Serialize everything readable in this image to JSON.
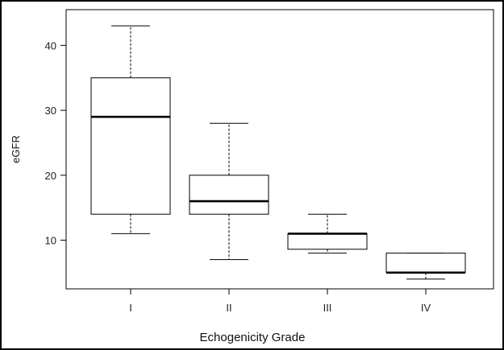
{
  "chart_data": {
    "type": "box",
    "title": "",
    "xlabel": "Echogenicity Grade",
    "ylabel": "eGFR",
    "categories": [
      "I",
      "II",
      "III",
      "IV"
    ],
    "ylim": [
      2.5,
      45.5
    ],
    "yticks": [
      10,
      20,
      30,
      40
    ],
    "grid": false,
    "boxes": [
      {
        "category": "I",
        "min": 11,
        "q1": 14,
        "median": 29,
        "q3": 35,
        "max": 43
      },
      {
        "category": "II",
        "min": 7,
        "q1": 14,
        "median": 16,
        "q3": 20,
        "max": 28
      },
      {
        "category": "III",
        "min": 8,
        "q1": 8.6,
        "median": 11,
        "q3": 11,
        "max": 14
      },
      {
        "category": "IV",
        "min": 4,
        "q1": 5,
        "median": 5,
        "q3": 8,
        "max": 8
      }
    ]
  }
}
